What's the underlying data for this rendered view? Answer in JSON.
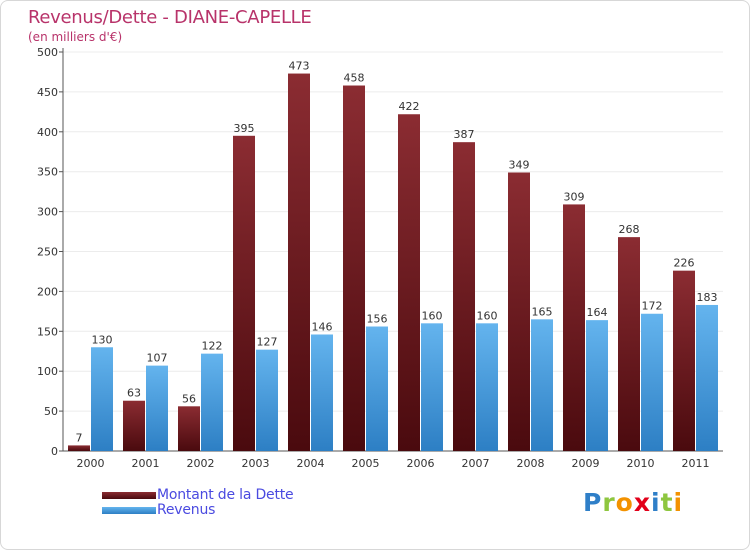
{
  "colors": {
    "title": "#b8336a",
    "subtitle": "#b8336a",
    "legend_text": "#4a4ae0",
    "debt_top": "#8b2c32",
    "debt_bottom": "#4a0a0e",
    "revenue_top": "#64b4ee",
    "revenue_bottom": "#2d7fc4",
    "grid": "#ececec",
    "axis": "#555555",
    "label": "#333333"
  },
  "chart_data": {
    "type": "bar",
    "title": "Revenus/Dette - DIANE-CAPELLE",
    "subtitle": "(en milliers d'€)",
    "xlabel": "",
    "ylabel": "",
    "ylim": [
      0,
      500
    ],
    "yticks": [
      0,
      50,
      100,
      150,
      200,
      250,
      300,
      350,
      400,
      450,
      500
    ],
    "grid": true,
    "legend_position": "bottom-left",
    "categories": [
      "2000",
      "2001",
      "2002",
      "2003",
      "2004",
      "2005",
      "2006",
      "2007",
      "2008",
      "2009",
      "2010",
      "2011"
    ],
    "series": [
      {
        "name": "Montant de la Dette",
        "values": [
          7,
          63,
          56,
          395,
          473,
          458,
          422,
          387,
          349,
          309,
          268,
          226
        ]
      },
      {
        "name": "Revenus",
        "values": [
          130,
          107,
          122,
          127,
          146,
          156,
          160,
          160,
          165,
          164,
          172,
          183
        ]
      }
    ]
  },
  "logo": {
    "text": "Proxiti",
    "letters": [
      {
        "ch": "P",
        "color": "#2f7fc8"
      },
      {
        "ch": "r",
        "color": "#8ec63f"
      },
      {
        "ch": "o",
        "color": "#f39200"
      },
      {
        "ch": "x",
        "color": "#e2001a"
      },
      {
        "ch": "i",
        "color": "#2f7fc8"
      },
      {
        "ch": "t",
        "color": "#8ec63f"
      },
      {
        "ch": "i",
        "color": "#f39200"
      }
    ]
  }
}
